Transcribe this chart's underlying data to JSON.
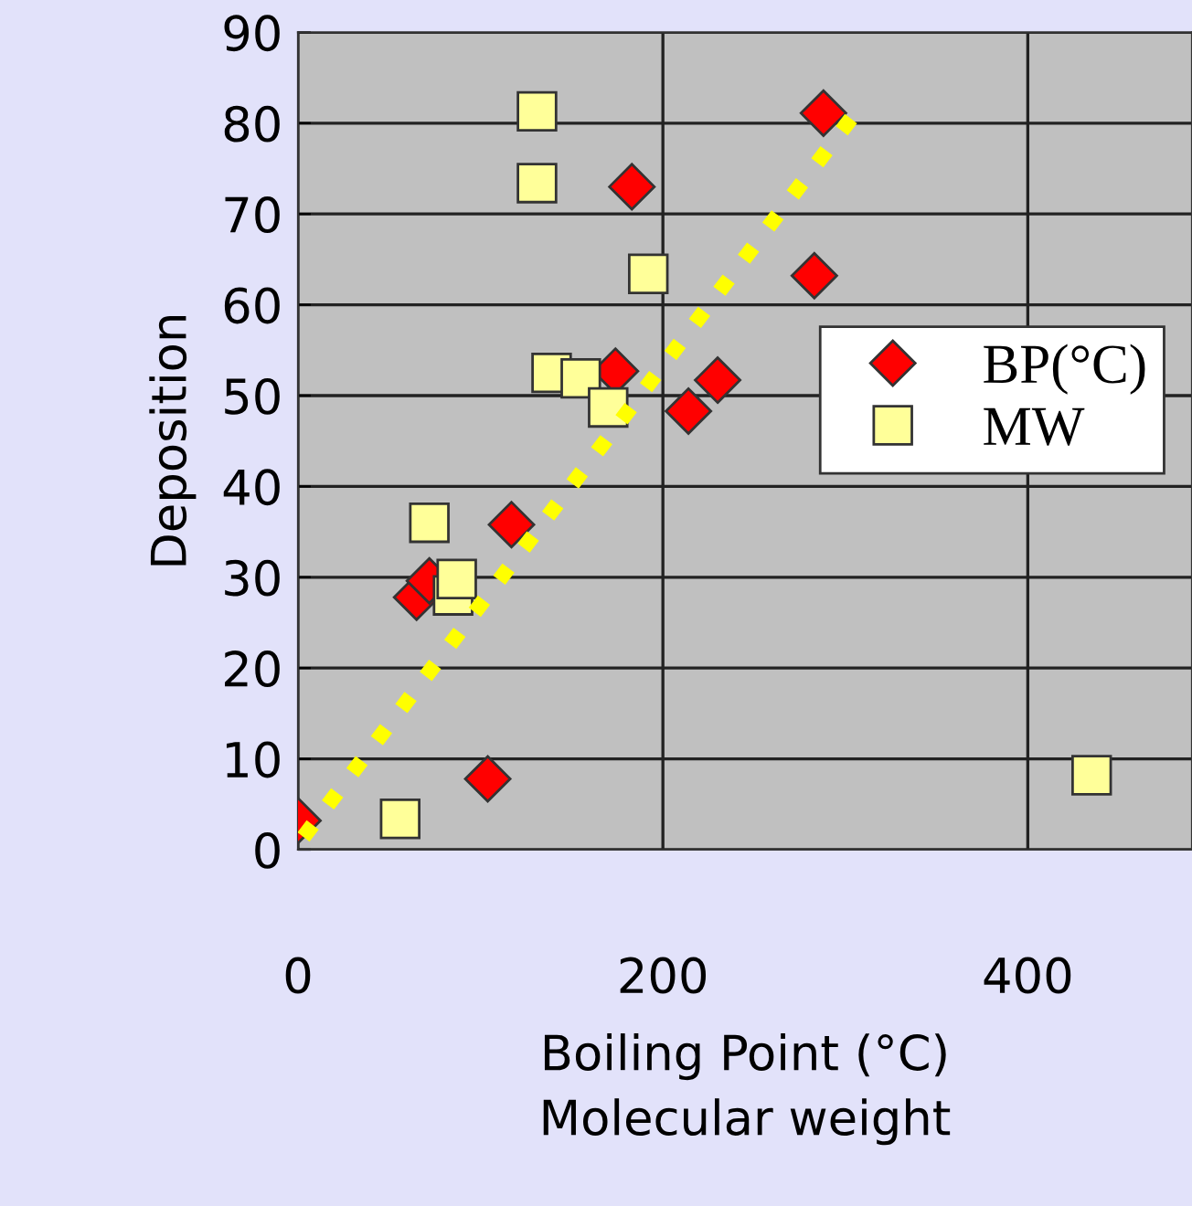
{
  "chart_data": {
    "type": "scatter",
    "xlabel": "Boiling Point (°C)\nMolecular weight",
    "ylabel": "Deposition",
    "xlim": [
      0,
      490
    ],
    "ylim": [
      0,
      90
    ],
    "xticks": [
      0,
      200,
      400
    ],
    "yticks": [
      0,
      10,
      20,
      30,
      40,
      50,
      60,
      70,
      80,
      90
    ],
    "grid": true,
    "legend": "right",
    "series": [
      {
        "name": "BP(°C)",
        "color": "#ff0000",
        "marker": "diamond",
        "x": [
          0,
          104,
          65,
          72,
          117,
          174,
          183,
          214,
          230,
          283,
          288
        ],
        "values": [
          3.2,
          7.8,
          27.8,
          29.6,
          35.8,
          52.7,
          73,
          48.3,
          51.7,
          63.2,
          81.1
        ]
      },
      {
        "name": "MW",
        "color": "#ffff99",
        "marker": "square",
        "x": [
          131,
          131,
          192,
          139,
          155,
          170,
          72,
          85,
          87,
          56,
          435
        ],
        "values": [
          81.3,
          73.4,
          63.4,
          52.5,
          51.9,
          48.7,
          36,
          28,
          29.8,
          3.4,
          8.2
        ]
      },
      {
        "type": "line",
        "color": "#ffff00",
        "line_style": "dotted",
        "marker": "none",
        "x": [
          3,
          305
        ],
        "values": [
          1.4,
          81
        ]
      }
    ]
  }
}
